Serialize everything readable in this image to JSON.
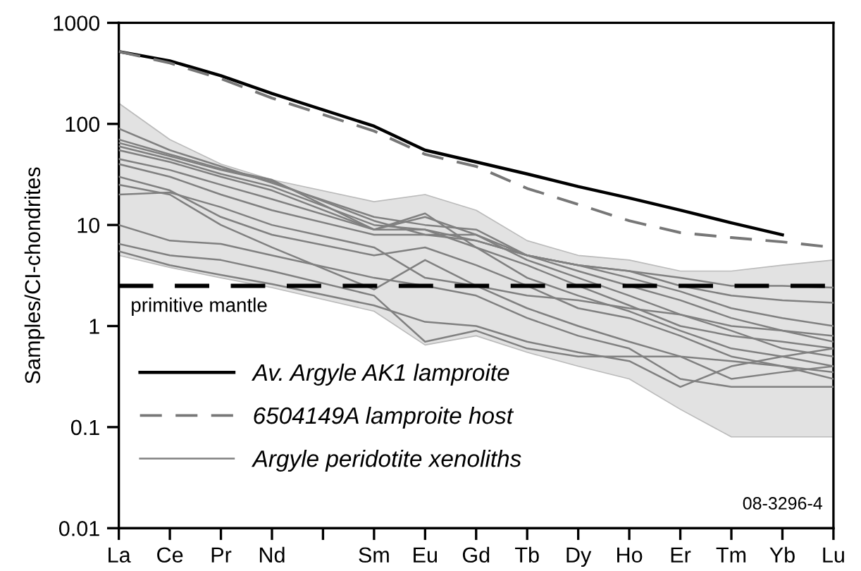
{
  "chart_data": {
    "type": "line",
    "ylabel": "Samples/CI-chondrites",
    "categories": [
      "La",
      "Ce",
      "Pr",
      "Nd",
      null,
      "Sm",
      "Eu",
      "Gd",
      "Tb",
      "Dy",
      "Ho",
      "Er",
      "Tm",
      "Yb",
      "Lu"
    ],
    "log": "y",
    "ylim": [
      0.01,
      1000
    ],
    "yticks": [
      0.01,
      0.1,
      1,
      10,
      100,
      1000
    ],
    "grid": false,
    "legend": "bottom left",
    "ref_lines": [
      {
        "axis": "y",
        "value": 2.5,
        "label": "primitive mantle",
        "color": "#000000",
        "line_style": "dashed"
      }
    ],
    "annotations": [
      "08-3296-4"
    ],
    "series": [
      {
        "name": "Argyle peridotite xenoliths",
        "color": "#808080",
        "line_style": "solid",
        "values": [
          65,
          48,
          35,
          27,
          null,
          11,
          8,
          7,
          5,
          3.5,
          2.5,
          1.8,
          1.2,
          0.9,
          0.7
        ],
        "lower": [
          5,
          3.8,
          3,
          2.4,
          null,
          1.4,
          0.65,
          0.8,
          0.55,
          0.4,
          0.3,
          0.15,
          0.08,
          0.08,
          0.08
        ],
        "upper": [
          160,
          70,
          40,
          28,
          null,
          17,
          20,
          14,
          7,
          5,
          4.5,
          3.5,
          3.5,
          4,
          4.5
        ]
      },
      {
        "color": "#808080",
        "line_style": "solid",
        "values": [
          60,
          45,
          32,
          24,
          null,
          10,
          9,
          6,
          4,
          2.5,
          1.6,
          1.0,
          0.8,
          0.7,
          0.6
        ]
      },
      {
        "color": "#808080",
        "line_style": "solid",
        "values": [
          70,
          50,
          36,
          28,
          null,
          9,
          12,
          8,
          4.5,
          3,
          2,
          1.3,
          0.9,
          0.6,
          0.5
        ]
      },
      {
        "color": "#808080",
        "line_style": "solid",
        "values": [
          55,
          42,
          30,
          22,
          null,
          9,
          13,
          6,
          3,
          2,
          1.4,
          0.9,
          0.6,
          0.5,
          0.4
        ]
      },
      {
        "color": "#808080",
        "line_style": "solid",
        "values": [
          90,
          55,
          38,
          26,
          null,
          12,
          10,
          9,
          5,
          4,
          3.5,
          3,
          2.5,
          2.5,
          2.4
        ]
      },
      {
        "color": "#808080",
        "line_style": "solid",
        "values": [
          40,
          30,
          20,
          14,
          null,
          8,
          8,
          8,
          5,
          4,
          3.5,
          2.5,
          2,
          1.8,
          1.7
        ]
      },
      {
        "color": "#808080",
        "line_style": "solid",
        "values": [
          30,
          22,
          12,
          8,
          null,
          5,
          6,
          4,
          2.5,
          1.5,
          1.2,
          0.8,
          0.5,
          0.4,
          0.3
        ]
      },
      {
        "color": "#808080",
        "line_style": "solid",
        "values": [
          25,
          20,
          10,
          6,
          null,
          2.3,
          4.5,
          2.5,
          1.5,
          1.0,
          0.7,
          0.5,
          0.45,
          0.4,
          0.35
        ]
      },
      {
        "color": "#808080",
        "line_style": "solid",
        "values": [
          20,
          21,
          15,
          10,
          null,
          6,
          3,
          2.5,
          2,
          1.8,
          1.5,
          1.3,
          1.0,
          0.9,
          0.8
        ]
      },
      {
        "color": "#808080",
        "line_style": "solid",
        "values": [
          10,
          7,
          6.5,
          5,
          null,
          3,
          2.5,
          2,
          1.2,
          0.8,
          0.6,
          0.3,
          0.25,
          0.25,
          0.25
        ]
      },
      {
        "color": "#808080",
        "line_style": "solid",
        "values": [
          6.5,
          5,
          4.5,
          3.5,
          null,
          2,
          0.7,
          0.9,
          0.6,
          0.5,
          0.5,
          0.5,
          0.3,
          0.35,
          0.4
        ]
      },
      {
        "color": "#808080",
        "line_style": "solid",
        "values": [
          5.5,
          4,
          3.2,
          2.6,
          null,
          1.6,
          1.1,
          1.0,
          0.7,
          0.55,
          0.45,
          0.25,
          0.4,
          0.5,
          0.6
        ]
      },
      {
        "color": "#808080",
        "line_style": "solid",
        "values": [
          45,
          35,
          25,
          18,
          null,
          9,
          9,
          7,
          5,
          4,
          3,
          2.2,
          1.5,
          1.2,
          1.0
        ]
      },
      {
        "name": "Av. Argyle AK1 lamproite",
        "color": "#000000",
        "line_style": "solid",
        "values": [
          520,
          420,
          300,
          200,
          null,
          95,
          55,
          42,
          32,
          24,
          18.5,
          14,
          10.5,
          8,
          null
        ]
      },
      {
        "name": "6504149A lamproite host",
        "color": "#777777",
        "line_style": "dashed",
        "values": [
          520,
          400,
          280,
          180,
          null,
          85,
          50,
          38,
          23,
          16,
          11,
          8.4,
          7.5,
          6.8,
          6
        ]
      }
    ]
  }
}
